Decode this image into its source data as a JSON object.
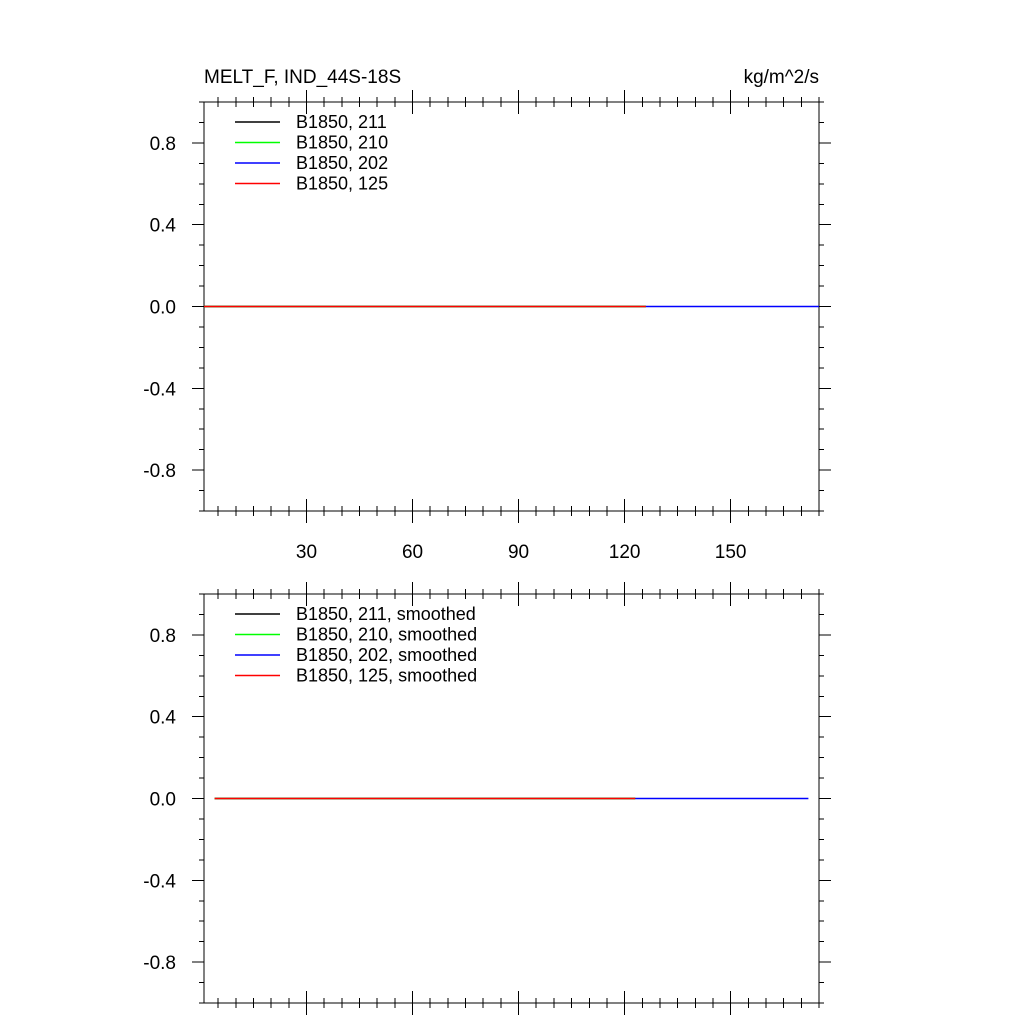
{
  "chart_data": [
    {
      "type": "line",
      "title": "MELT_F, IND_44S-18S",
      "units": "kg/m^2/s",
      "xlim": [
        1,
        175
      ],
      "ylim": [
        -1,
        1
      ],
      "xticks": [
        30,
        60,
        90,
        120,
        150
      ],
      "xtick_labels": [
        "30",
        "60",
        "90",
        "120",
        "150"
      ],
      "yticks": [
        -0.8,
        -0.4,
        0.0,
        0.4,
        0.8
      ],
      "ytick_labels": [
        "-0.8",
        "-0.4",
        "0.0",
        "0.4",
        "0.8"
      ],
      "show_xtick_labels": true,
      "legend": "top-left",
      "series": [
        {
          "name": "B1850, 211",
          "color": "#000000",
          "x": [
            1,
            126
          ],
          "y": [
            0,
            0
          ]
        },
        {
          "name": "B1850, 210",
          "color": "#00ff00",
          "x": [
            1,
            126
          ],
          "y": [
            0,
            0
          ]
        },
        {
          "name": "B1850, 202",
          "color": "#0000ff",
          "x": [
            1,
            175
          ],
          "y": [
            0,
            0
          ]
        },
        {
          "name": "B1850, 125",
          "color": "#ff0000",
          "x": [
            1,
            126
          ],
          "y": [
            0,
            0
          ]
        }
      ]
    },
    {
      "type": "line",
      "title": "",
      "units": "",
      "xlim": [
        1,
        175
      ],
      "ylim": [
        -1,
        1
      ],
      "xticks": [
        30,
        60,
        90,
        120,
        150
      ],
      "xtick_labels": [],
      "yticks": [
        -0.8,
        -0.4,
        0.0,
        0.4,
        0.8
      ],
      "ytick_labels": [
        "-0.8",
        "-0.4",
        "0.0",
        "0.4",
        "0.8"
      ],
      "show_xtick_labels": false,
      "legend": "top-left",
      "series": [
        {
          "name": "B1850, 211, smoothed",
          "color": "#000000",
          "x": [
            4,
            123
          ],
          "y": [
            0,
            0
          ]
        },
        {
          "name": "B1850, 210, smoothed",
          "color": "#00ff00",
          "x": [
            4,
            123
          ],
          "y": [
            0,
            0
          ]
        },
        {
          "name": "B1850, 202, smoothed",
          "color": "#0000ff",
          "x": [
            4,
            172
          ],
          "y": [
            0,
            0
          ]
        },
        {
          "name": "B1850, 125, smoothed",
          "color": "#ff0000",
          "x": [
            4,
            123
          ],
          "y": [
            0,
            0
          ]
        }
      ]
    }
  ]
}
